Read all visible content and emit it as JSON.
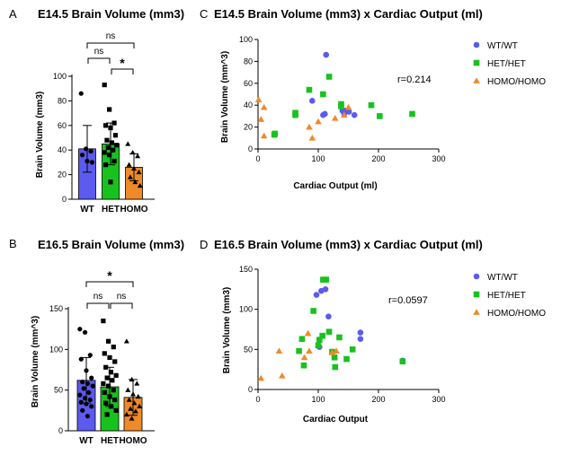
{
  "colors": {
    "wt": "#5b5bef",
    "het": "#18c21e",
    "homo": "#ef8a28",
    "black": "#000000"
  },
  "chart_data": [
    {
      "panel_label": "A",
      "type": "bar",
      "title": "E14.5 Brain Volume (mm3)",
      "ylabel": "Brain Volume (mm3)",
      "categories": [
        "WT",
        "HET",
        "HOMO"
      ],
      "ylim": [
        0,
        100
      ],
      "yticks": [
        0,
        20,
        40,
        60,
        80,
        100
      ],
      "means": [
        41,
        45,
        26
      ],
      "sd": [
        19,
        17,
        11
      ],
      "points": [
        [
          86,
          41,
          39,
          36,
          31,
          30
        ],
        [
          93,
          73,
          62,
          60,
          58,
          52,
          48,
          46,
          44,
          42,
          40,
          38,
          36,
          31,
          28,
          14
        ],
        [
          45,
          38,
          35,
          28,
          25,
          22,
          18,
          14,
          11
        ]
      ],
      "significance": [
        {
          "pair": [
            "WT",
            "HET"
          ],
          "label": "ns"
        },
        {
          "pair": [
            "HET",
            "HOMO"
          ],
          "label": "*"
        },
        {
          "pair": [
            "WT",
            "HOMO"
          ],
          "label": "ns"
        }
      ]
    },
    {
      "panel_label": "B",
      "type": "bar",
      "title": "E16.5 Brain Volume (mm3)",
      "ylabel": "Brain  Volume (mm^3)",
      "categories": [
        "WT",
        "HET",
        "HOMO"
      ],
      "ylim": [
        0,
        150
      ],
      "yticks": [
        0,
        50,
        100,
        150
      ],
      "means": [
        62,
        54,
        41
      ],
      "sd": [
        28,
        24,
        22
      ],
      "points": [
        [
          125,
          121,
          93,
          88,
          74,
          65,
          60,
          58,
          55,
          52,
          47,
          44,
          40,
          38,
          35,
          33,
          30,
          25,
          18
        ],
        [
          135,
          110,
          103,
          95,
          90,
          85,
          78,
          72,
          68,
          65,
          62,
          58,
          55,
          50,
          47,
          42,
          38,
          34,
          30,
          25,
          20
        ],
        [
          110,
          63,
          58,
          50,
          45,
          42,
          38,
          34,
          30,
          27,
          24,
          20,
          15
        ]
      ],
      "significance": [
        {
          "pair": [
            "WT",
            "HET"
          ],
          "label": "ns"
        },
        {
          "pair": [
            "HET",
            "HOMO"
          ],
          "label": "ns"
        },
        {
          "pair": [
            "WT",
            "HOMO"
          ],
          "label": "*"
        }
      ]
    },
    {
      "panel_label": "C",
      "type": "scatter",
      "title": "E14.5 Brain Volume (mm3) x Cardiac Output (ml)",
      "xlabel": "Cardiac Output (ml)",
      "ylabel": "Brain Volume (mm^3)",
      "xlim": [
        0,
        300
      ],
      "ylim": [
        0,
        100
      ],
      "xticks": [
        0,
        100,
        200,
        300
      ],
      "yticks": [
        0,
        20,
        40,
        60,
        80,
        100
      ],
      "annotation": "r=0.214",
      "series": [
        {
          "name": "WT/WT",
          "color_key": "wt",
          "marker": "circle",
          "points": [
            [
              113,
              86
            ],
            [
              90,
              44
            ],
            [
              108,
              31
            ],
            [
              111,
              32
            ],
            [
              140,
              35
            ],
            [
              145,
              35
            ],
            [
              151,
              34
            ],
            [
              160,
              31
            ],
            [
              143,
              32
            ]
          ]
        },
        {
          "name": "HET/HET",
          "color_key": "het",
          "marker": "square",
          "points": [
            [
              27,
              13
            ],
            [
              28,
              14
            ],
            [
              62,
              31
            ],
            [
              62,
              33
            ],
            [
              85,
              54
            ],
            [
              108,
              50
            ],
            [
              118,
              66
            ],
            [
              138,
              39
            ],
            [
              138,
              41
            ],
            [
              188,
              40
            ],
            [
              202,
              30
            ],
            [
              256,
              32
            ]
          ]
        },
        {
          "name": "HOMO/HOMO",
          "color_key": "homo",
          "marker": "triangle",
          "points": [
            [
              1,
              45
            ],
            [
              5,
              27
            ],
            [
              10,
              38
            ],
            [
              10,
              12
            ],
            [
              85,
              20
            ],
            [
              90,
              10
            ],
            [
              100,
              25
            ],
            [
              128,
              28
            ],
            [
              143,
              31
            ],
            [
              150,
              38
            ]
          ]
        }
      ]
    },
    {
      "panel_label": "D",
      "type": "scatter",
      "title": "E16.5 Brain Volume (mm3) x Cardiac Output (ml)",
      "xlabel": "Cardiac Output",
      "ylabel": "Brain Volume (mm3)",
      "xlim": [
        0,
        300
      ],
      "ylim": [
        0,
        150
      ],
      "xticks": [
        0,
        100,
        200,
        300
      ],
      "yticks": [
        0,
        50,
        100,
        150
      ],
      "annotation": "r=0.0597",
      "series": [
        {
          "name": "WT/WT",
          "color_key": "wt",
          "marker": "circle",
          "points": [
            [
              97,
              118
            ],
            [
              105,
              123
            ],
            [
              112,
              125
            ],
            [
              117,
              91
            ],
            [
              102,
              53
            ],
            [
              170,
              71
            ],
            [
              170,
              63
            ],
            [
              240,
              36
            ]
          ]
        },
        {
          "name": "HET/HET",
          "color_key": "het",
          "marker": "square",
          "points": [
            [
              108,
              137
            ],
            [
              113,
              137
            ],
            [
              92,
              98
            ],
            [
              73,
              63
            ],
            [
              68,
              48
            ],
            [
              76,
              30
            ],
            [
              100,
              55
            ],
            [
              102,
              62
            ],
            [
              107,
              67
            ],
            [
              118,
              72
            ],
            [
              123,
              47
            ],
            [
              127,
              40
            ],
            [
              128,
              28
            ],
            [
              135,
              65
            ],
            [
              147,
              38
            ],
            [
              157,
              50
            ],
            [
              240,
              35
            ]
          ]
        },
        {
          "name": "HOMO/HOMO",
          "color_key": "homo",
          "marker": "triangle",
          "points": [
            [
              5,
              14
            ],
            [
              35,
              48
            ],
            [
              40,
              17
            ],
            [
              77,
              40
            ],
            [
              85,
              48
            ],
            [
              83,
              70
            ],
            [
              123,
              46
            ],
            [
              130,
              48
            ]
          ]
        }
      ]
    }
  ]
}
